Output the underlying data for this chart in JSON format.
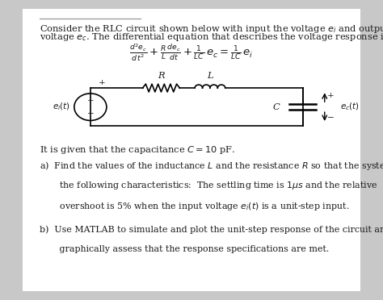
{
  "bg_color": "#ffffff",
  "outer_bg": "#c8c8c8",
  "line_color": "#aaaaaa",
  "title_line1": "Consider the RLC circuit shown below with input the voltage $e_i$ and output the",
  "title_line2": "voltage $e_c$. The differential equation that describes the voltage response is:",
  "given_text": "It is given that the capacitance $C = 10$ pF.",
  "part_a_lines": [
    "a)  Find the values of the inductance $L$ and the resistance $R$ so that the system has",
    "       the following characteristics:  The settling time is $1\\mu s$ and the relative",
    "       overshoot is 5% when the input voltage $e_i(t)$ is a unit-step input."
  ],
  "part_b_lines": [
    "b)  Use MATLAB to simulate and plot the unit-step response of the circuit and",
    "       graphically assess that the response specifications are met."
  ],
  "text_color": "#1a1a1a",
  "fs_body": 8.2,
  "fs_eq": 9.5,
  "fs_small": 7.5
}
